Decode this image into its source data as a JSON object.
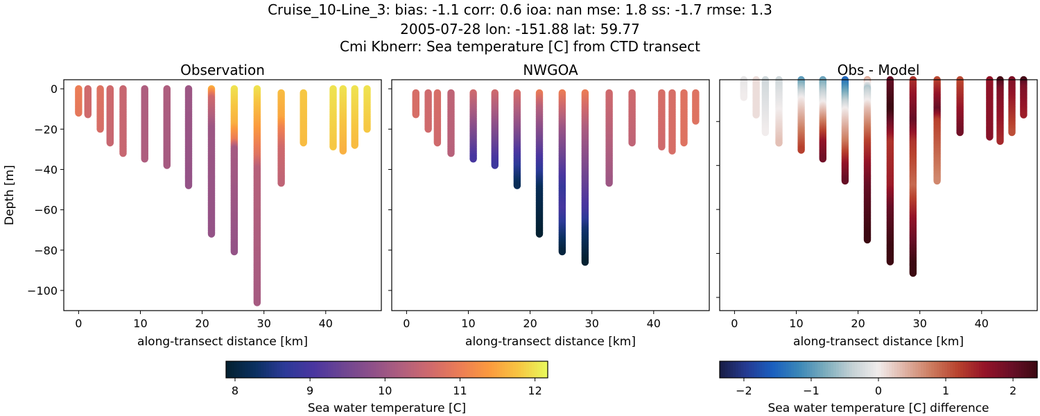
{
  "title": {
    "line1": "Cruise_10-Line_3: bias: -1.1  corr: 0.6  ioa: nan  mse: 1.8  ss: -1.7  rmse: 1.3",
    "line2": "2005-07-28 lon: -151.88 lat: 59.77",
    "line3": "Cmi Kbnerr: Sea temperature [C] from CTD transect"
  },
  "chart_data": [
    {
      "type": "scatter",
      "title": "Observation",
      "xlabel": "along-transect distance [km]",
      "ylabel": "Depth [m]",
      "xlim": [
        -2.4,
        49
      ],
      "ylim": [
        -110,
        4.5
      ],
      "xticks": [
        0,
        10,
        20,
        30,
        40
      ],
      "yticks": [
        0,
        -20,
        -40,
        -60,
        -80,
        -100
      ],
      "colormap": "thermal",
      "stations": [
        {
          "x": 0,
          "profile": [
            [
              0,
              11.0
            ],
            [
              -12,
              10.9
            ]
          ]
        },
        {
          "x": 1.5,
          "profile": [
            [
              0,
              10.6
            ],
            [
              -13,
              10.6
            ]
          ]
        },
        {
          "x": 3.5,
          "profile": [
            [
              0,
              10.8
            ],
            [
              -20,
              10.7
            ]
          ]
        },
        {
          "x": 5.1,
          "profile": [
            [
              0,
              10.6
            ],
            [
              -27,
              10.5
            ]
          ]
        },
        {
          "x": 7.2,
          "profile": [
            [
              0,
              10.5
            ],
            [
              -32,
              10.5
            ]
          ]
        },
        {
          "x": 10.7,
          "profile": [
            [
              0,
              10.2
            ],
            [
              -35,
              10.2
            ]
          ]
        },
        {
          "x": 14.3,
          "profile": [
            [
              0,
              10.2
            ],
            [
              -38,
              10.1
            ]
          ]
        },
        {
          "x": 17.8,
          "profile": [
            [
              0,
              10.0
            ],
            [
              -48,
              9.9
            ]
          ]
        },
        {
          "x": 21.5,
          "profile": [
            [
              0,
              11.6
            ],
            [
              -5,
              10.6
            ],
            [
              -20,
              10.0
            ],
            [
              -72,
              9.9
            ]
          ]
        },
        {
          "x": 25.2,
          "profile": [
            [
              0,
              12.0
            ],
            [
              -18,
              11.6
            ],
            [
              -26,
              11.0
            ],
            [
              -30,
              10.1
            ],
            [
              -81,
              9.9
            ]
          ]
        },
        {
          "x": 28.9,
          "profile": [
            [
              0,
              12.0
            ],
            [
              -20,
              11.4
            ],
            [
              -34,
              10.8
            ],
            [
              -40,
              10.3
            ],
            [
              -106,
              10.1
            ]
          ]
        },
        {
          "x": 32.8,
          "profile": [
            [
              -2,
              11.7
            ],
            [
              -15,
              11.5
            ],
            [
              -20,
              11.1
            ],
            [
              -30,
              10.6
            ],
            [
              -47,
              10.4
            ]
          ]
        },
        {
          "x": 36.4,
          "profile": [
            [
              -2,
              11.8
            ],
            [
              -27,
              11.7
            ]
          ]
        },
        {
          "x": 41.2,
          "profile": [
            [
              0,
              12.0
            ],
            [
              -29,
              11.8
            ]
          ]
        },
        {
          "x": 42.8,
          "profile": [
            [
              0,
              12.0
            ],
            [
              -31,
              11.6
            ]
          ]
        },
        {
          "x": 44.7,
          "profile": [
            [
              0,
              12.0
            ],
            [
              -28,
              11.7
            ]
          ]
        },
        {
          "x": 46.7,
          "profile": [
            [
              0,
              12.0
            ],
            [
              -20,
              11.8
            ]
          ]
        }
      ]
    },
    {
      "type": "scatter",
      "title": "NWGOA",
      "xlabel": "along-transect distance [km]",
      "xlim": [
        -2.4,
        49
      ],
      "ylim": [
        -110,
        4.5
      ],
      "xticks": [
        0,
        10,
        20,
        30,
        40
      ],
      "colormap": "thermal",
      "stations": [
        {
          "x": 1.5,
          "profile": [
            [
              -2,
              10.7
            ],
            [
              -13,
              10.7
            ]
          ]
        },
        {
          "x": 3.5,
          "profile": [
            [
              -2,
              10.6
            ],
            [
              -20,
              10.6
            ]
          ]
        },
        {
          "x": 5.0,
          "profile": [
            [
              -2,
              10.7
            ],
            [
              -27,
              10.6
            ]
          ]
        },
        {
          "x": 7.2,
          "profile": [
            [
              -2,
              10.4
            ],
            [
              -32,
              10.3
            ]
          ]
        },
        {
          "x": 10.8,
          "profile": [
            [
              -2,
              10.6
            ],
            [
              -15,
              10.0
            ],
            [
              -35,
              9.0
            ]
          ]
        },
        {
          "x": 14.3,
          "profile": [
            [
              -2,
              10.6
            ],
            [
              -15,
              10.0
            ],
            [
              -38,
              8.9
            ]
          ]
        },
        {
          "x": 17.9,
          "profile": [
            [
              -2,
              10.7
            ],
            [
              -20,
              9.8
            ],
            [
              -40,
              8.6
            ],
            [
              -48,
              8.2
            ]
          ]
        },
        {
          "x": 21.5,
          "profile": [
            [
              -2,
              11.0
            ],
            [
              -10,
              10.3
            ],
            [
              -30,
              9.3
            ],
            [
              -50,
              8.2
            ],
            [
              -72,
              7.9
            ]
          ]
        },
        {
          "x": 25.2,
          "profile": [
            [
              -2,
              11.0
            ],
            [
              -20,
              10.0
            ],
            [
              -50,
              8.8
            ],
            [
              -60,
              9.0
            ],
            [
              -81,
              8.0
            ]
          ]
        },
        {
          "x": 28.9,
          "profile": [
            [
              -2,
              11.0
            ],
            [
              -20,
              10.2
            ],
            [
              -60,
              9.0
            ],
            [
              -70,
              8.4
            ],
            [
              -86,
              7.9
            ]
          ]
        },
        {
          "x": 32.8,
          "profile": [
            [
              -2,
              10.6
            ],
            [
              -47,
              10.0
            ]
          ]
        },
        {
          "x": 36.5,
          "profile": [
            [
              -2,
              10.6
            ],
            [
              -27,
              10.4
            ]
          ]
        },
        {
          "x": 41.3,
          "profile": [
            [
              -2,
              10.7
            ],
            [
              -29,
              10.6
            ]
          ]
        },
        {
          "x": 43.0,
          "profile": [
            [
              -2,
              10.7
            ],
            [
              -31,
              10.7
            ]
          ]
        },
        {
          "x": 44.9,
          "profile": [
            [
              -2,
              10.8
            ],
            [
              -27,
              10.8
            ]
          ]
        },
        {
          "x": 46.8,
          "profile": [
            [
              -2,
              10.8
            ],
            [
              -16,
              10.8
            ]
          ]
        }
      ]
    },
    {
      "type": "scatter",
      "title": "Obs - Model",
      "xlabel": "along-transect distance [km]",
      "xlim": [
        -2.4,
        49
      ],
      "ylim": [
        -106,
        -1
      ],
      "xticks": [
        0,
        10,
        20,
        30,
        40
      ],
      "yticks": [
        -20,
        -40,
        -60,
        -80,
        -100
      ],
      "colormap": "balance",
      "stations": [
        {
          "x": 1.5,
          "profile": [
            [
              -1,
              -0.1
            ],
            [
              -9,
              0.0
            ]
          ]
        },
        {
          "x": 3.5,
          "profile": [
            [
              -1,
              0.1
            ],
            [
              -17,
              0.1
            ]
          ]
        },
        {
          "x": 5.0,
          "profile": [
            [
              -1,
              -0.3
            ],
            [
              -25,
              0.0
            ]
          ]
        },
        {
          "x": 7.2,
          "profile": [
            [
              -1,
              -0.3
            ],
            [
              -30,
              0.3
            ]
          ]
        },
        {
          "x": 10.8,
          "profile": [
            [
              -1,
              -1.0
            ],
            [
              -10,
              0.0
            ],
            [
              -33,
              1.2
            ]
          ]
        },
        {
          "x": 14.3,
          "profile": [
            [
              -1,
              -0.9
            ],
            [
              -12,
              0.0
            ],
            [
              -30,
              1.6
            ],
            [
              -37,
              1.9
            ]
          ]
        },
        {
          "x": 17.9,
          "profile": [
            [
              -1,
              -1.5
            ],
            [
              -15,
              0.0
            ],
            [
              -30,
              0.8
            ],
            [
              -40,
              1.6
            ],
            [
              -47,
              2.0
            ]
          ]
        },
        {
          "x": 21.5,
          "profile": [
            [
              -1,
              0.5
            ],
            [
              -5,
              -0.5
            ],
            [
              -15,
              0.3
            ],
            [
              -30,
              1.2
            ],
            [
              -50,
              2.0
            ],
            [
              -74,
              2.4
            ]
          ]
        },
        {
          "x": 25.2,
          "profile": [
            [
              -1,
              2.0
            ],
            [
              -15,
              2.4
            ],
            [
              -30,
              1.3
            ],
            [
              -50,
              1.5
            ],
            [
              -60,
              2.0
            ],
            [
              -84,
              2.5
            ]
          ]
        },
        {
          "x": 28.9,
          "profile": [
            [
              -1,
              1.3
            ],
            [
              -20,
              2.0
            ],
            [
              -30,
              1.3
            ],
            [
              -50,
              0.9
            ],
            [
              -65,
              1.6
            ],
            [
              -89,
              2.5
            ]
          ]
        },
        {
          "x": 32.8,
          "profile": [
            [
              -1,
              1.1
            ],
            [
              -15,
              2.0
            ],
            [
              -20,
              1.2
            ],
            [
              -47,
              0.7
            ]
          ]
        },
        {
          "x": 36.5,
          "profile": [
            [
              -1,
              1.1
            ],
            [
              -25,
              1.9
            ]
          ]
        },
        {
          "x": 41.3,
          "profile": [
            [
              -1,
              1.6
            ],
            [
              -27,
              1.7
            ]
          ]
        },
        {
          "x": 43.0,
          "profile": [
            [
              -1,
              2.3
            ],
            [
              -6,
              1.8
            ],
            [
              -29,
              1.4
            ]
          ]
        },
        {
          "x": 44.9,
          "profile": [
            [
              -1,
              1.8
            ],
            [
              -25,
              1.1
            ]
          ]
        },
        {
          "x": 46.8,
          "profile": [
            [
              -1,
              2.3
            ],
            [
              -5,
              1.8
            ],
            [
              -17,
              1.5
            ]
          ]
        }
      ]
    }
  ],
  "colorbars": [
    {
      "label": "Sea water temperature [C]",
      "range": [
        7.88,
        12.17
      ],
      "ticks": [
        8,
        9,
        10,
        11,
        12
      ],
      "colormap": "thermal"
    },
    {
      "label": "Sea water temperature [C] difference",
      "range": [
        -2.36,
        2.36
      ],
      "ticks": [
        "−2",
        "−1",
        "0",
        "1",
        "2"
      ],
      "tick_values": [
        -2,
        -1,
        0,
        1,
        2
      ],
      "colormap": "balance"
    }
  ],
  "colormaps": {
    "thermal": [
      "#04202f",
      "#0a3060",
      "#2c3a98",
      "#4a36a0",
      "#6d4592",
      "#8e5089",
      "#b05f7e",
      "#d06a6c",
      "#ec7d55",
      "#fb9a3f",
      "#f7c542",
      "#e8fa5b"
    ],
    "balance": [
      "#181c43",
      "#253a92",
      "#1a5fbf",
      "#3b87b8",
      "#7cadbd",
      "#c4d1d5",
      "#f1ecec",
      "#dfb2a4",
      "#cc7b5e",
      "#b8422e",
      "#951428",
      "#6a0f27",
      "#3c0912"
    ]
  }
}
